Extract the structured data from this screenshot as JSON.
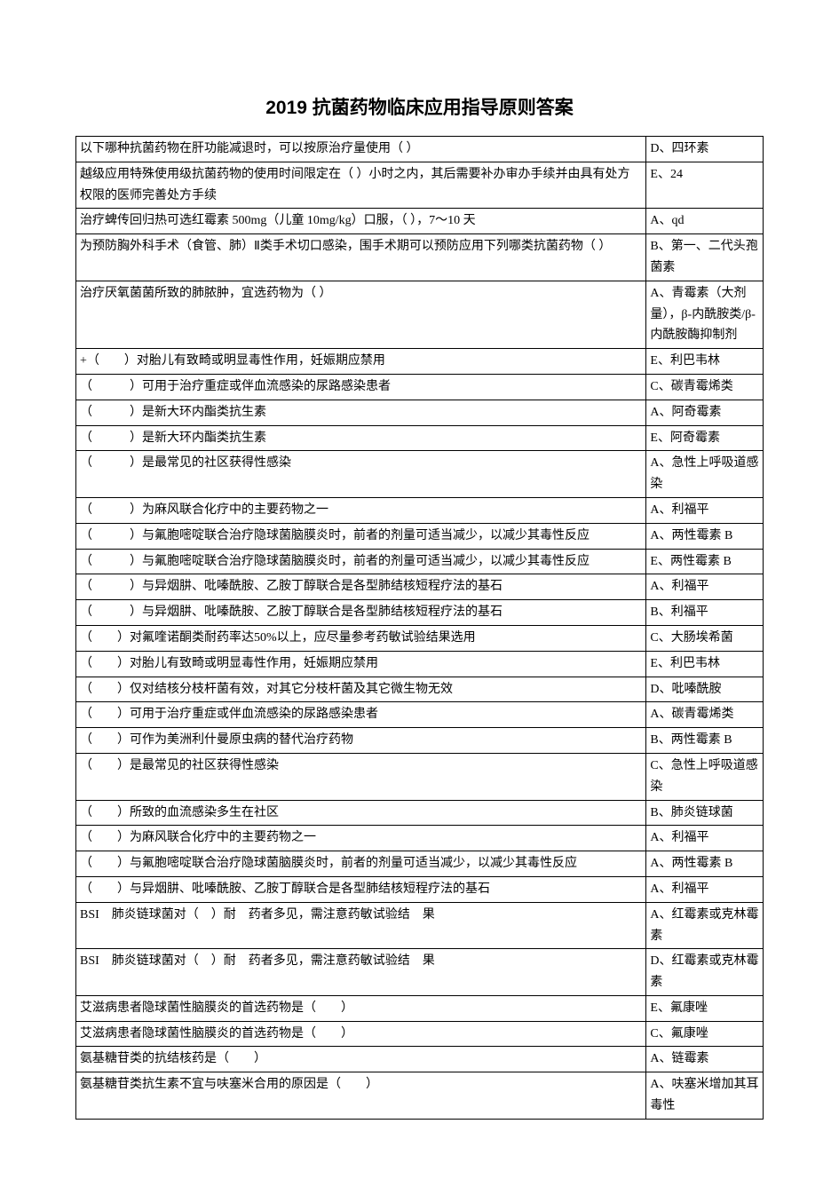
{
  "title": "2019 抗菌药物临床应用指导原则答案",
  "background_color": "#ffffff",
  "border_color": "#000000",
  "text_color": "#000000",
  "title_fontsize": 21,
  "body_fontsize": 14,
  "rows": [
    {
      "question": "以下哪种抗菌药物在肝功能减退时，可以按原治疗量使用（ ）",
      "answer": "D、四环素"
    },
    {
      "question": "越级应用特殊使用级抗菌药物的使用时间限定在（ ）小时之内，其后需要补办审办手续并由具有处方权限的医师完善处方手续",
      "answer": "E、24"
    },
    {
      "question": "治疗蜱传回归热可选红霉素 500mg（儿童 10mg/kg）口服，（ ），7～10 天",
      "answer": "A、qd"
    },
    {
      "question": "为预防胸外科手术（食管、肺）Ⅱ类手术切口感染，围手术期可以预防应用下列哪类抗菌药物（ ）",
      "answer": "B、第一、二代头孢菌素"
    },
    {
      "question": "治疗厌氧菌菌所致的肺脓肿，宜选药物为（ ）",
      "answer": "A、青霉素（大剂量），β-内酰胺类/β-内酰胺酶抑制剂"
    },
    {
      "question": "+（　　）对胎儿有致畸或明显毒性作用，妊娠期应禁用",
      "answer": "E、利巴韦林"
    },
    {
      "question": "（　　　）可用于治疗重症或伴血流感染的尿路感染患者",
      "answer": "C、碳青霉烯类"
    },
    {
      "question": "（　　　）是新大环内酯类抗生素",
      "answer": "A、阿奇霉素"
    },
    {
      "question": "（　　　）是新大环内酯类抗生素",
      "answer": "E、阿奇霉素"
    },
    {
      "question": "（　　　）是最常见的社区获得性感染",
      "answer": "A、急性上呼吸道感染"
    },
    {
      "question": "（　　　）为麻风联合化疗中的主要药物之一",
      "answer": "A、利福平"
    },
    {
      "question": "（　　　）与氟胞嘧啶联合治疗隐球菌脑膜炎时，前者的剂量可适当减少，以减少其毒性反应",
      "answer": "A、两性霉素 B"
    },
    {
      "question": "（　　　）与氟胞嘧啶联合治疗隐球菌脑膜炎时，前者的剂量可适当减少，以减少其毒性反应",
      "answer": "E、两性霉素 B"
    },
    {
      "question": "（　　　）与异烟肼、吡嗪酰胺、乙胺丁醇联合是各型肺结核短程疗法的基石",
      "answer": "A、利福平"
    },
    {
      "question": "（　　　）与异烟肼、吡嗪酰胺、乙胺丁醇联合是各型肺结核短程疗法的基石",
      "answer": "B、利福平"
    },
    {
      "question": "（　　）对氟喹诺酮类耐药率达50%以上，应尽量参考药敏试验结果选用",
      "answer": "C、大肠埃希菌"
    },
    {
      "question": "（　　）对胎儿有致畸或明显毒性作用，妊娠期应禁用",
      "answer": "E、利巴韦林"
    },
    {
      "question": "（　　）仅对结核分枝杆菌有效，对其它分枝杆菌及其它微生物无效",
      "answer": "D、吡嗪酰胺"
    },
    {
      "question": "（　　）可用于治疗重症或伴血流感染的尿路感染患者",
      "answer": "A、碳青霉烯类"
    },
    {
      "question": "（　　）可作为美洲利什曼原虫病的替代治疗药物",
      "answer": "B、两性霉素 B"
    },
    {
      "question": "（　　）是最常见的社区获得性感染",
      "answer": "C、急性上呼吸道感染"
    },
    {
      "question": "（　　）所致的血流感染多生在社区",
      "answer": "B、肺炎链球菌"
    },
    {
      "question": "（　　）为麻风联合化疗中的主要药物之一",
      "answer": "A、利福平"
    },
    {
      "question": "（　　）与氟胞嘧啶联合治疗隐球菌脑膜炎时，前者的剂量可适当减少，以减少其毒性反应",
      "answer": "A、两性霉素 B"
    },
    {
      "question": "（　　）与异烟肼、吡嗪酰胺、乙胺丁醇联合是各型肺结核短程疗法的基石",
      "answer": "A、利福平"
    },
    {
      "question": "BSI　肺炎链球菌对（　）耐　药者多见，需注意药敏试验结　果",
      "answer": "A、红霉素或克林霉素"
    },
    {
      "question": "BSI　肺炎链球菌对（　）耐　药者多见，需注意药敏试验结　果",
      "answer": "D、红霉素或克林霉素"
    },
    {
      "question": "艾滋病患者隐球菌性脑膜炎的首选药物是（　　）",
      "answer": "E、氟康唑"
    },
    {
      "question": "艾滋病患者隐球菌性脑膜炎的首选药物是（　　）",
      "answer": "C、氟康唑"
    },
    {
      "question": "氨基糖苷类的抗结核药是（　　）",
      "answer": "A、链霉素"
    },
    {
      "question": "氨基糖苷类抗生素不宜与呋塞米合用的原因是（　　）",
      "answer": "A、呋塞米增加其耳毒性"
    }
  ]
}
